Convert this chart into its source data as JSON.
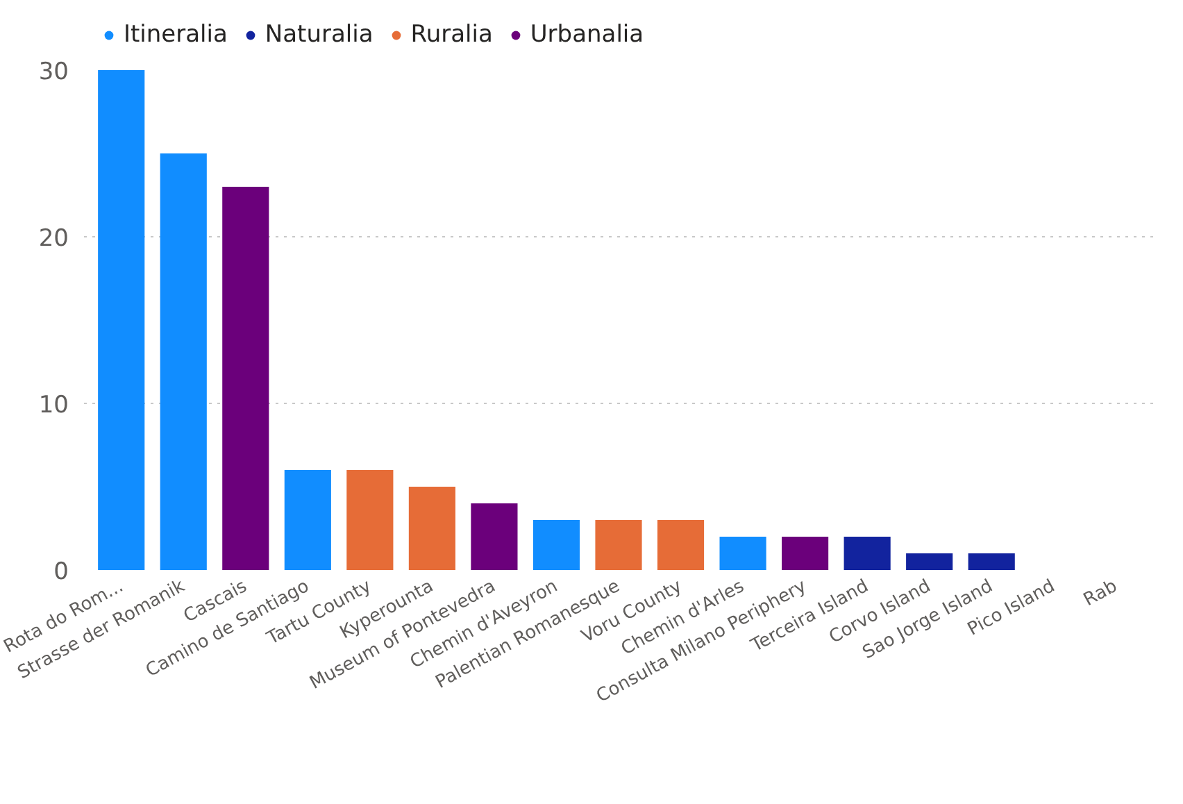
{
  "chart_data": {
    "type": "bar",
    "categories": [
      "Rota do Rom...",
      "Strasse der Romanik",
      "Cascais",
      "Camino de Santiago",
      "Tartu County",
      "Kyperounta",
      "Museum of Pontevedra",
      "Chemin d'Aveyron",
      "Palentian Romanesque",
      "Voru County",
      "Chemin d'Arles",
      "Consulta Milano Periphery",
      "Terceira Island",
      "Corvo Island",
      "Sao Jorge Island",
      "Pico Island",
      "Rab"
    ],
    "series": [
      {
        "name": "Itineralia",
        "color": "#118dff",
        "values": [
          30,
          25,
          null,
          6,
          null,
          null,
          null,
          3,
          null,
          null,
          2,
          null,
          null,
          null,
          null,
          null,
          null
        ]
      },
      {
        "name": "Naturalia",
        "color": "#12239e",
        "values": [
          null,
          null,
          null,
          null,
          null,
          null,
          null,
          null,
          null,
          null,
          null,
          null,
          2,
          1,
          1,
          null,
          null
        ]
      },
      {
        "name": "Ruralia",
        "color": "#e66c37",
        "values": [
          null,
          null,
          null,
          null,
          6,
          5,
          null,
          null,
          3,
          3,
          null,
          null,
          null,
          null,
          null,
          null,
          null
        ]
      },
      {
        "name": "Urbanalia",
        "color": "#6b007b",
        "values": [
          null,
          null,
          23,
          null,
          null,
          null,
          4,
          null,
          null,
          null,
          null,
          2,
          null,
          null,
          null,
          null,
          null
        ]
      }
    ],
    "ylim": [
      0,
      30
    ],
    "yticks": [
      0,
      10,
      20,
      30
    ],
    "grid": "y",
    "legend": "top left"
  }
}
